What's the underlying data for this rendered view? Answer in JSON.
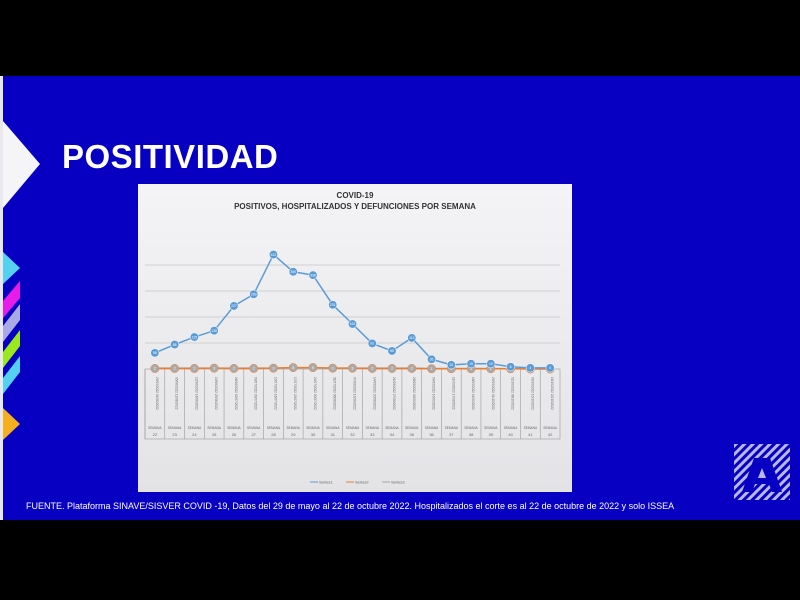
{
  "slide": {
    "title": "POSITIVIDAD",
    "footer": "FUENTE. Plataforma SINAVE/SISVER COVID -19, Datos del 29 de mayo al 22 de octubre 2022.  Hospitalizados el corte es al 22 de octubre de 2022 y solo ISSEA",
    "colors": {
      "background": "#0700c2",
      "series1": "#5b9bd5",
      "series2": "#ed7d31",
      "series3": "#a5a5a5"
    }
  },
  "chart_data": {
    "type": "line",
    "title": "COVID-19",
    "subtitle": "POSITIVOS, HOSPITALIZADOS Y DEFUNCIONES POR SEMANA",
    "xlabel": "",
    "ylabel": "",
    "week_prefix": "SEMANA",
    "categories": [
      "22",
      "23",
      "24",
      "25",
      "26",
      "27",
      "28",
      "29",
      "30",
      "31",
      "32",
      "33",
      "34",
      "35",
      "36",
      "37",
      "38",
      "39",
      "40",
      "41",
      "42"
    ],
    "date_ranges": [
      "29/05/2022 04/06/2022",
      "05/06/2022 11/06/2022",
      "12/06/2022 18/06/2022",
      "19/06/2022 25/06/2022",
      "26/06/2022 02/07/2022",
      "03/07/2022 09/07/2022",
      "10/07/2022 16/07/2022",
      "17/07/2022 23/07/2022",
      "24/07/2022 30/07/2022",
      "31/07/2022 06/08/2022",
      "07/08/2022 13/08/2022",
      "14/08/2022 20/08/2022",
      "21/08/2022 27/08/2022",
      "28/08/2022 03/09/2022",
      "04/09/2022 10/09/2022",
      "11/09/2022 17/09/2022",
      "18/09/2022 24/09/2022",
      "25/09/2022 01/10/2022",
      "02/10/2022 08/10/2022",
      "09/10/2022 15/10/2022",
      "16/10/2022 22/10/2022"
    ],
    "series": [
      {
        "name": "Series1",
        "values": [
          58,
          88,
          115,
          138,
          227,
          269,
          412,
          350,
          338,
          231,
          162,
          92,
          65,
          112,
          35,
          15,
          19,
          19,
          8,
          4,
          4
        ]
      },
      {
        "name": "Series2",
        "values": [
          2,
          2,
          2,
          3,
          2,
          2,
          3,
          5,
          5,
          3,
          3,
          2,
          2,
          2,
          1,
          1,
          1,
          1,
          1,
          0,
          0
        ]
      },
      {
        "name": "Series3",
        "values": [
          3,
          3,
          3,
          3,
          3,
          3,
          3,
          4,
          4,
          3,
          3,
          3,
          3,
          3,
          2,
          2,
          2,
          2,
          1,
          1,
          1
        ]
      }
    ],
    "ylim": [
      0,
      450
    ],
    "grid": true,
    "legend_position": "bottom"
  }
}
